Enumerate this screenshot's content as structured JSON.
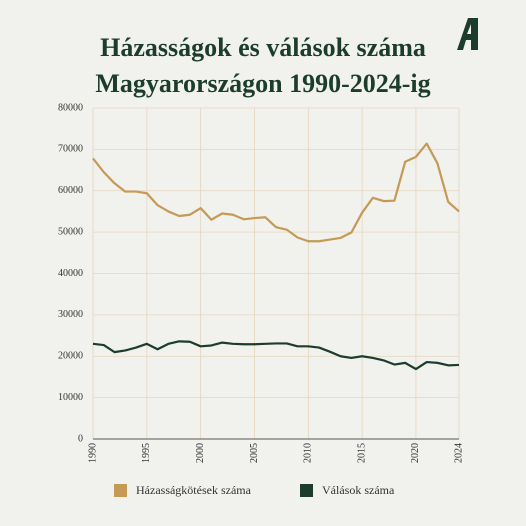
{
  "chart_data": {
    "type": "line",
    "title": "Házasságok és válások száma Magyarországon 1990-2024-ig",
    "x": [
      1990,
      1991,
      1992,
      1993,
      1994,
      1995,
      1996,
      1997,
      1998,
      1999,
      2000,
      2001,
      2002,
      2003,
      2004,
      2005,
      2006,
      2007,
      2008,
      2009,
      2010,
      2011,
      2012,
      2013,
      2014,
      2015,
      2016,
      2017,
      2018,
      2019,
      2020,
      2021,
      2022,
      2023,
      2024
    ],
    "series": [
      {
        "name": "Házasságkötések száma",
        "color": "#c49a55",
        "values": [
          67800,
          64500,
          61800,
          59800,
          59800,
          59400,
          56500,
          55000,
          53900,
          54200,
          55800,
          53000,
          54500,
          54200,
          53100,
          53400,
          53600,
          51200,
          50600,
          48700,
          47800,
          47800,
          48200,
          48600,
          49900,
          54700,
          58300,
          57500,
          57600,
          67000,
          68200,
          71400,
          66600,
          57300,
          55000
        ]
      },
      {
        "name": "Válások száma",
        "color": "#1c3d2c",
        "values": [
          23000,
          22700,
          21000,
          21400,
          22100,
          23000,
          21700,
          23000,
          23600,
          23500,
          22400,
          22600,
          23300,
          23000,
          22900,
          22900,
          23000,
          23100,
          23100,
          22400,
          22400,
          22100,
          21100,
          20000,
          19600,
          20000,
          19600,
          19000,
          18000,
          18400,
          16900,
          18600,
          18400,
          17800,
          17900
        ]
      }
    ],
    "xlim": [
      1990,
      2024
    ],
    "xticks": [
      1990,
      1995,
      2000,
      2005,
      2010,
      2015,
      2020,
      2024
    ],
    "ylim": [
      0,
      80000
    ],
    "yticks": [
      0,
      10000,
      20000,
      30000,
      40000,
      50000,
      60000,
      70000,
      80000
    ],
    "grid": true
  }
}
